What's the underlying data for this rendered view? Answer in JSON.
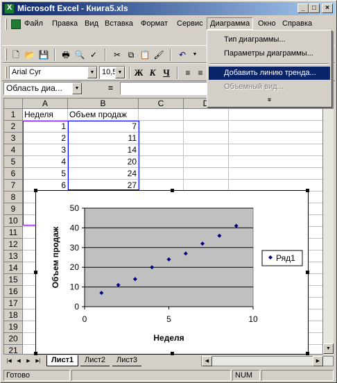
{
  "window": {
    "title": "Microsoft Excel - Книга5.xls",
    "min": "_",
    "max": "□",
    "close": "×"
  },
  "menu": {
    "items": [
      "Файл",
      "Правка",
      "Вид",
      "Вставка",
      "Формат",
      "Сервис",
      "Диаграмма",
      "Окно",
      "Справка"
    ]
  },
  "toolbar_format": {
    "font": "Arial Cyr",
    "size": "10,5",
    "bold": "Ж",
    "italic": "К",
    "underline": "Ч"
  },
  "formula_bar": {
    "name_box": "Область диа...",
    "eq": "="
  },
  "dropdown": {
    "items": [
      {
        "label": "Тип диаграммы..."
      },
      {
        "label": "Параметры диаграммы..."
      },
      {
        "label": "Добавить линию тренда..."
      },
      {
        "label": "Объемный вид..."
      }
    ],
    "more": "»"
  },
  "grid": {
    "columns": [
      "A",
      "B",
      "C",
      "D"
    ],
    "rows": [
      "1",
      "2",
      "3",
      "4",
      "5",
      "6",
      "7",
      "8",
      "9",
      "10",
      "11",
      "12",
      "13",
      "14",
      "15",
      "16",
      "17",
      "18",
      "19",
      "20",
      "21"
    ],
    "headers": [
      "Неделя",
      "Объем продаж"
    ],
    "data": [
      [
        "1",
        "7"
      ],
      [
        "2",
        "11"
      ],
      [
        "3",
        "14"
      ],
      [
        "4",
        "20"
      ],
      [
        "5",
        "24"
      ],
      [
        "6",
        "27"
      ]
    ]
  },
  "chart_data": {
    "type": "scatter",
    "series": [
      {
        "name": "Ряд1",
        "x": [
          1,
          2,
          3,
          4,
          5,
          6,
          7,
          8,
          9
        ],
        "y": [
          7,
          11,
          14,
          20,
          24,
          27,
          32,
          36,
          41
        ]
      }
    ],
    "xlabel": "Неделя",
    "ylabel": "Объем продаж",
    "xlim": [
      0,
      10
    ],
    "ylim": [
      0,
      50
    ],
    "xticks": [
      "0",
      "5",
      "10"
    ],
    "yticks": [
      "0",
      "10",
      "20",
      "30",
      "40",
      "50"
    ],
    "legend": "right",
    "colors": {
      "plot_bg": "#c0c0c0",
      "marker": "#000080"
    }
  },
  "sheets": [
    "Лист1",
    "Лист2",
    "Лист3"
  ],
  "status": {
    "ready": "Готово",
    "num": "NUM"
  }
}
